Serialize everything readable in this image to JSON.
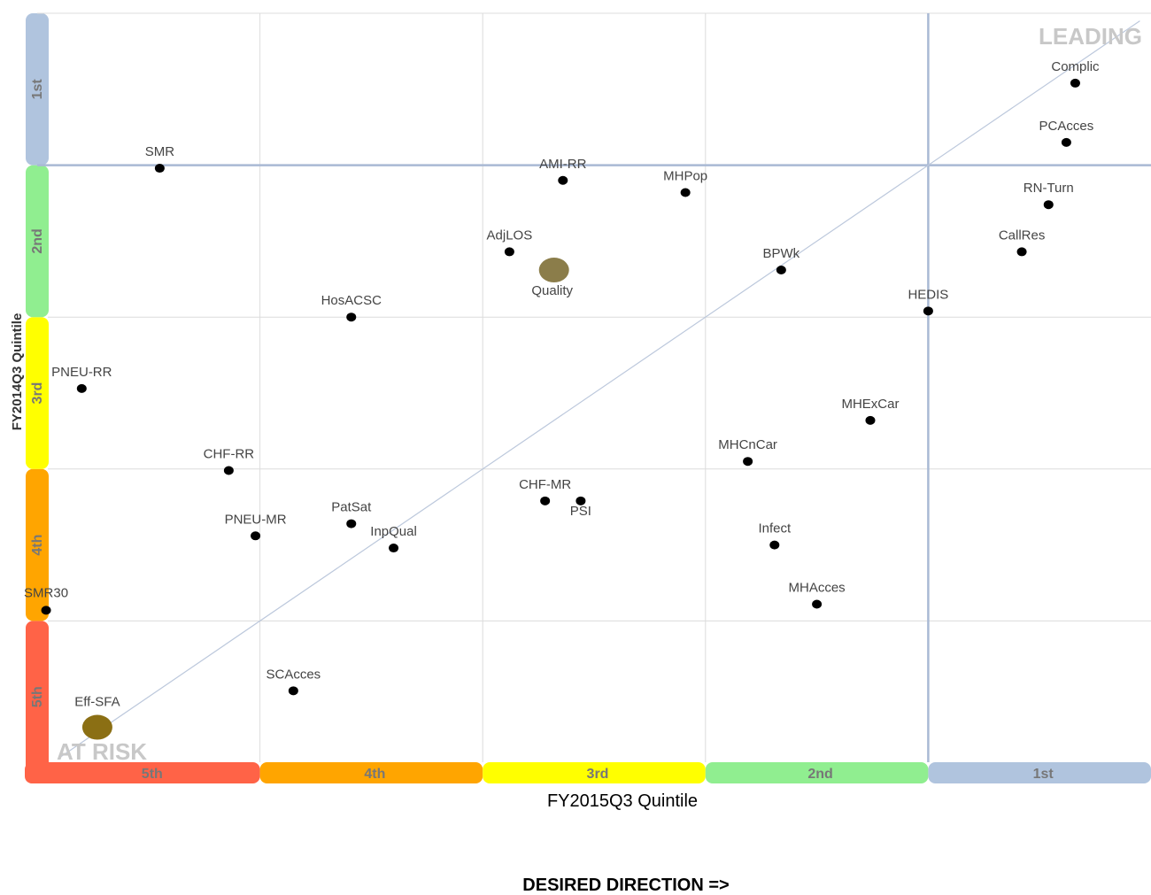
{
  "chart_data": {
    "type": "scatter",
    "xlabel": "FY2015Q3 Quintile",
    "ylabel": "FY2014Q3 Quintile",
    "xlim": [
      0,
      5
    ],
    "ylim": [
      0,
      5
    ],
    "x_bands": [
      {
        "label": "5th",
        "color": "#ff6347"
      },
      {
        "label": "4th",
        "color": "#ffa500"
      },
      {
        "label": "3rd",
        "color": "#ffff00"
      },
      {
        "label": "2nd",
        "color": "#90ee90"
      },
      {
        "label": "1st",
        "color": "#b0c4de"
      }
    ],
    "y_bands": [
      {
        "label": "5th",
        "color": "#ff6347"
      },
      {
        "label": "4th",
        "color": "#ffa500"
      },
      {
        "label": "3rd",
        "color": "#ffff00"
      },
      {
        "label": "2nd",
        "color": "#90ee90"
      },
      {
        "label": "1st",
        "color": "#b0c4de"
      }
    ],
    "corner_labels": {
      "top_right": "LEADING",
      "bottom_left": "AT RISK"
    },
    "footer": "DESIRED DIRECTION =>",
    "points": [
      {
        "label": "Complic",
        "x": 4.66,
        "y": 4.54
      },
      {
        "label": "PCAcces",
        "x": 4.62,
        "y": 4.15
      },
      {
        "label": "RN-Turn",
        "x": 4.54,
        "y": 3.74
      },
      {
        "label": "CallRes",
        "x": 4.42,
        "y": 3.43
      },
      {
        "label": "HEDIS",
        "x": 4.0,
        "y": 3.04
      },
      {
        "label": "SMR",
        "x": 0.55,
        "y": 3.98
      },
      {
        "label": "AMI-RR",
        "x": 2.36,
        "y": 3.9
      },
      {
        "label": "MHPop",
        "x": 2.91,
        "y": 3.82
      },
      {
        "label": "AdjLOS",
        "x": 2.12,
        "y": 3.43
      },
      {
        "label": "Quality",
        "x": 2.32,
        "y": 3.31,
        "highlight": true
      },
      {
        "label": "BPWk",
        "x": 3.34,
        "y": 3.31
      },
      {
        "label": "HosACSC",
        "x": 1.41,
        "y": 3.0
      },
      {
        "label": "PNEU-RR",
        "x": 0.2,
        "y": 2.53
      },
      {
        "label": "MHExCar",
        "x": 3.74,
        "y": 2.32
      },
      {
        "label": "MHCnCar",
        "x": 3.19,
        "y": 2.05
      },
      {
        "label": "CHF-RR",
        "x": 0.86,
        "y": 1.99
      },
      {
        "label": "CHF-MR",
        "x": 2.28,
        "y": 1.79
      },
      {
        "label": "PSI",
        "x": 2.44,
        "y": 1.79
      },
      {
        "label": "PatSat",
        "x": 1.41,
        "y": 1.64
      },
      {
        "label": "PNEU-MR",
        "x": 0.98,
        "y": 1.56
      },
      {
        "label": "InpQual",
        "x": 1.6,
        "y": 1.48
      },
      {
        "label": "Infect",
        "x": 3.31,
        "y": 1.5
      },
      {
        "label": "MHAcces",
        "x": 3.5,
        "y": 1.11
      },
      {
        "label": "SMR30",
        "x": 0.04,
        "y": 1.07
      },
      {
        "label": "SCAcces",
        "x": 1.15,
        "y": 0.54
      },
      {
        "label": "Eff-SFA",
        "x": 0.27,
        "y": 0.3,
        "highlight": true
      }
    ]
  }
}
